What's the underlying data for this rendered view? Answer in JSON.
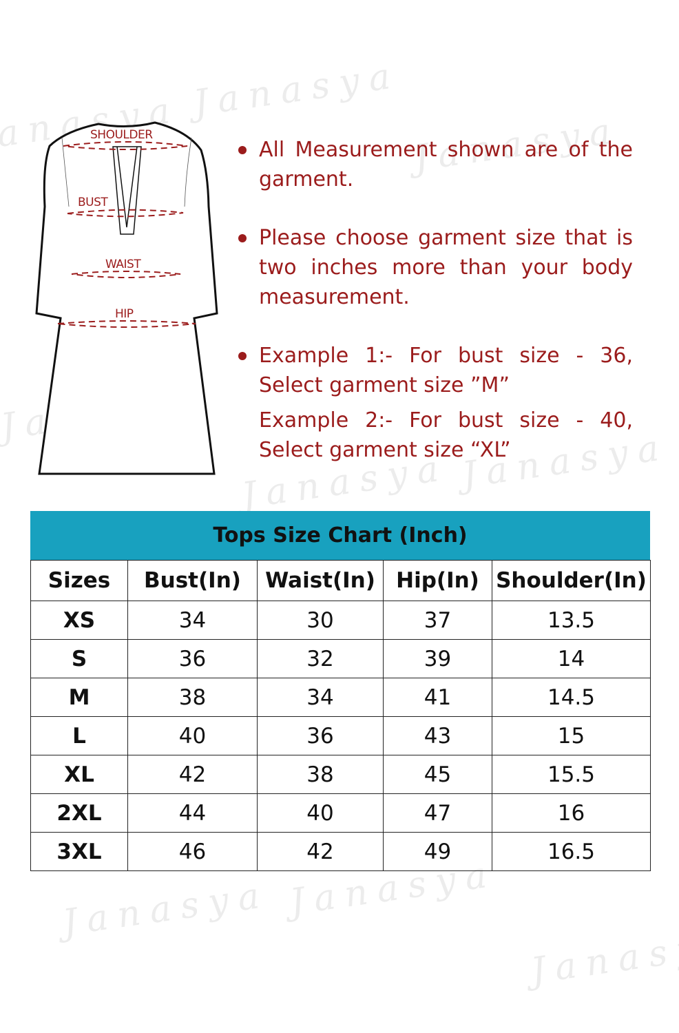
{
  "watermark": "Janasya",
  "diagram": {
    "labels": {
      "shoulder": "SHOULDER",
      "bust": "BUST",
      "waist": "WAIST",
      "hip": "HIP"
    },
    "line_color": "#9b1c1c"
  },
  "notes": [
    "All Measurement shown are of the garment.",
    "Please choose garment size that is two inches more than your body measurement.",
    "Example 1:- For bust size - 36, Select garment size ”M”",
    "Example 2:- For bust size - 40, Select garment size “XL”"
  ],
  "text_color": "#9b1c1c",
  "size_chart": {
    "title": "Tops Size Chart (Inch)",
    "header_color": "#18a1bf",
    "columns": [
      "Sizes",
      "Bust(In)",
      "Waist(In)",
      "Hip(In)",
      "Shoulder(In)"
    ],
    "rows": [
      [
        "XS",
        "34",
        "30",
        "37",
        "13.5"
      ],
      [
        "S",
        "36",
        "32",
        "39",
        "14"
      ],
      [
        "M",
        "38",
        "34",
        "41",
        "14.5"
      ],
      [
        "L",
        "40",
        "36",
        "43",
        "15"
      ],
      [
        "XL",
        "42",
        "38",
        "45",
        "15.5"
      ],
      [
        "2XL",
        "44",
        "40",
        "47",
        "16"
      ],
      [
        "3XL",
        "46",
        "42",
        "49",
        "16.5"
      ]
    ]
  }
}
